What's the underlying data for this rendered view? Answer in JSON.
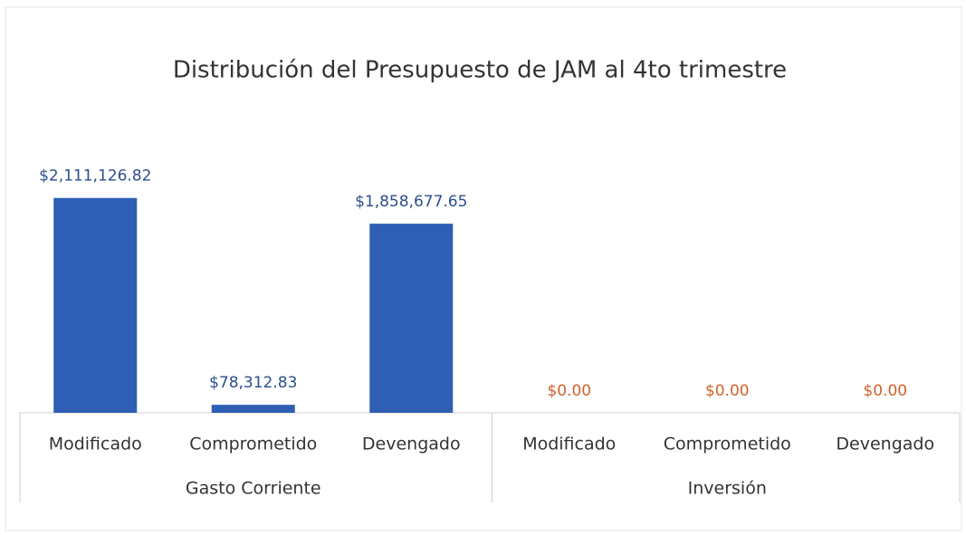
{
  "chart_data": {
    "type": "bar",
    "title": "Distribución del Presupuesto de JAM al 4to trimestre",
    "categories": [
      "Modificado",
      "Comprometido",
      "Devengado",
      "Modificado",
      "Comprometido",
      "Devengado"
    ],
    "groups": [
      {
        "name": "Gasto Corriente",
        "size": 3,
        "color": "#2e5fb4",
        "label_color": "#2b4f8c"
      },
      {
        "name": "Inversión",
        "size": 3,
        "color": "#2e5fb4",
        "label_color": "#d0622a"
      }
    ],
    "values": [
      2111126.82,
      78312.83,
      1858677.65,
      0,
      0,
      0
    ],
    "value_labels": [
      "$2,111,126.82",
      "$78,312.83",
      "$1,858,677.65",
      "$0.00",
      "$0.00",
      "$0.00"
    ],
    "ylim": [
      0,
      2500000
    ]
  }
}
